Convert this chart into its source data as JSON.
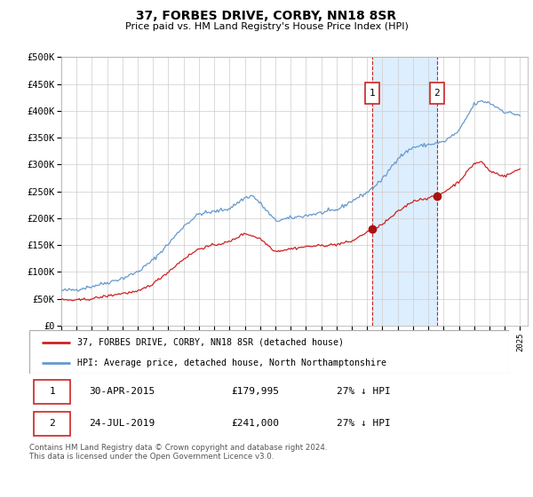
{
  "title": "37, FORBES DRIVE, CORBY, NN18 8SR",
  "subtitle": "Price paid vs. HM Land Registry's House Price Index (HPI)",
  "ylim": [
    0,
    500000
  ],
  "yticks": [
    0,
    50000,
    100000,
    150000,
    200000,
    250000,
    300000,
    350000,
    400000,
    450000,
    500000
  ],
  "ytick_labels": [
    "£0",
    "£50K",
    "£100K",
    "£150K",
    "£200K",
    "£250K",
    "£300K",
    "£350K",
    "£400K",
    "£450K",
    "£500K"
  ],
  "xlim_start": 1995.0,
  "xlim_end": 2025.5,
  "xticks": [
    1995,
    1996,
    1997,
    1998,
    1999,
    2000,
    2001,
    2002,
    2003,
    2004,
    2005,
    2006,
    2007,
    2008,
    2009,
    2010,
    2011,
    2012,
    2013,
    2014,
    2015,
    2016,
    2017,
    2018,
    2019,
    2020,
    2021,
    2022,
    2023,
    2024,
    2025
  ],
  "hpi_color": "#6699cc",
  "price_color": "#cc2222",
  "marker_color": "#aa1111",
  "grid_color": "#cccccc",
  "bg_color": "#ffffff",
  "plot_bg_color": "#ffffff",
  "shade_color": "#ddeeff",
  "vline_color": "#cc2222",
  "sale1_x": 2015.33,
  "sale1_y": 179995,
  "sale2_x": 2019.56,
  "sale2_y": 241000,
  "legend_line1": "37, FORBES DRIVE, CORBY, NN18 8SR (detached house)",
  "legend_line2": "HPI: Average price, detached house, North Northamptonshire",
  "note1_num": "1",
  "note1_date": "30-APR-2015",
  "note1_price": "£179,995",
  "note1_hpi": "27% ↓ HPI",
  "note2_num": "2",
  "note2_date": "24-JUL-2019",
  "note2_price": "£241,000",
  "note2_hpi": "27% ↓ HPI",
  "footer": "Contains HM Land Registry data © Crown copyright and database right 2024.\nThis data is licensed under the Open Government Licence v3.0."
}
